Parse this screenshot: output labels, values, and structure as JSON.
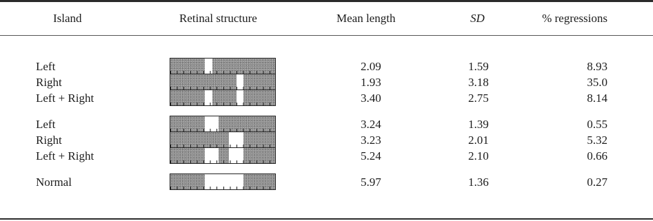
{
  "table": {
    "headers": {
      "island": "Island",
      "retinal": "Retinal structure",
      "mean": "Mean length",
      "sd": "SD",
      "reg": "% regressions"
    },
    "rows": [
      {
        "label": "Left",
        "mean": "2.09",
        "sd": "1.59",
        "reg": "8.93",
        "windows": [
          [
            0.33,
            0.4
          ]
        ]
      },
      {
        "label": "Right",
        "mean": "1.93",
        "sd": "3.18",
        "reg": "35.0",
        "windows": [
          [
            0.63,
            0.7
          ]
        ]
      },
      {
        "label": "Left + Right",
        "mean": "3.40",
        "sd": "2.75",
        "reg": "8.14",
        "windows": [
          [
            0.33,
            0.4
          ],
          [
            0.63,
            0.7
          ]
        ]
      },
      {
        "label": "Left",
        "mean": "3.24",
        "sd": "1.39",
        "reg": "0.55",
        "windows": [
          [
            0.33,
            0.46
          ]
        ]
      },
      {
        "label": "Right",
        "mean": "3.23",
        "sd": "2.01",
        "reg": "5.32",
        "windows": [
          [
            0.56,
            0.7
          ]
        ]
      },
      {
        "label": "Left + Right",
        "mean": "5.24",
        "sd": "2.10",
        "reg": "0.66",
        "windows": [
          [
            0.33,
            0.46
          ],
          [
            0.56,
            0.7
          ]
        ]
      },
      {
        "label": "Normal",
        "mean": "5.97",
        "sd": "1.36",
        "reg": "0.27",
        "windows": [
          [
            0.33,
            0.7
          ]
        ]
      }
    ]
  }
}
